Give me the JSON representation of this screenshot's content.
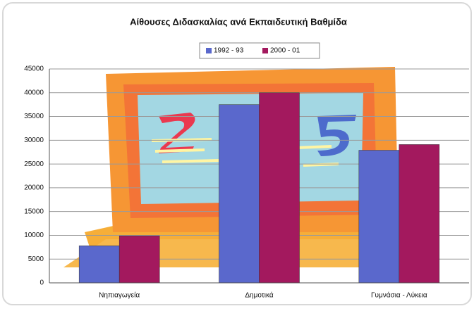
{
  "chart_data": {
    "type": "bar",
    "title": "Αίθουσες Διδασκαλίας ανά Εκπαιδευτική Βαθμίδα",
    "categories": [
      "Νηπιαγωγεία",
      "Δημοτικά",
      "Γυμνάσια - Λύκεια"
    ],
    "series": [
      {
        "name": "1992 - 93",
        "color": "#5a68cc",
        "values": [
          7800,
          37500,
          27900
        ]
      },
      {
        "name": "2000 - 01",
        "color": "#a3195e",
        "values": [
          9900,
          40000,
          29100
        ]
      }
    ],
    "ylim": [
      0,
      45000
    ],
    "yticks": [
      0,
      5000,
      10000,
      15000,
      20000,
      25000,
      30000,
      35000,
      40000,
      45000
    ],
    "grid": true,
    "legend": "top"
  }
}
